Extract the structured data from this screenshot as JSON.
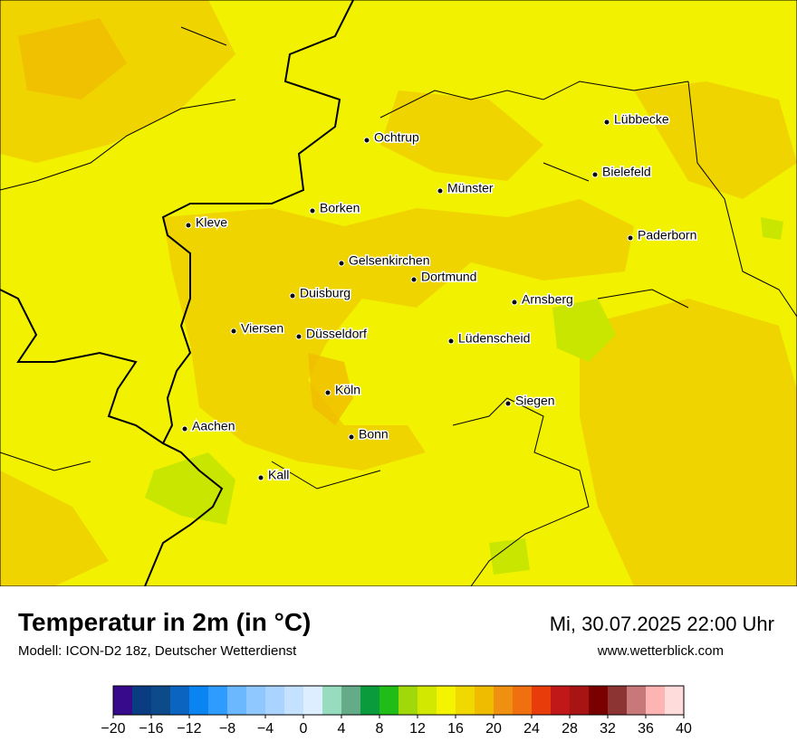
{
  "title": "Temperatur in 2m (in °C)",
  "subtitle": "Modell: ICON-D2 18z, Deutscher Wetterdienst",
  "datetime": "Mi, 30.07.2025 22:00 Uhr",
  "website": "www.wetterblick.com",
  "cities": [
    "Lübbecke",
    "Ochtrup",
    "Bielefeld",
    "Münster",
    "Borken",
    "Kleve",
    "Paderborn",
    "Gelsenkirchen",
    "Dortmund",
    "Duisburg",
    "Arnsberg",
    "Viersen",
    "Düsseldorf",
    "Lüdenscheid",
    "Köln",
    "Siegen",
    "Aachen",
    "Bonn",
    "Kall"
  ],
  "colorbar": {
    "range": [
      -20,
      40
    ],
    "ticks": [
      {
        "value": -20,
        "label": "−20"
      },
      {
        "value": -16,
        "label": "−16"
      },
      {
        "value": -12,
        "label": "−12"
      },
      {
        "value": -8,
        "label": "−8"
      },
      {
        "value": -4,
        "label": "−4"
      },
      0,
      4,
      8,
      12,
      16,
      20,
      24,
      28,
      32,
      36,
      40
    ],
    "colors": [
      "#360a8a",
      "#0a3c82",
      "#0c4a8a",
      "#0a64c0",
      "#0a84f0",
      "#2e9cff",
      "#6cb8ff",
      "#8ec8ff",
      "#aad4ff",
      "#c4e2ff",
      "#dceeff",
      "#98dcc0",
      "#64ac88",
      "#0a9c3c",
      "#20bc18",
      "#a0d80a",
      "#d2e800",
      "#f4f400",
      "#f0d800",
      "#f0bc00",
      "#f09010",
      "#f07010",
      "#e83c0a",
      "#c01818",
      "#a81414",
      "#7a0000",
      "#8c3434",
      "#c87878",
      "#ffb4b4",
      "#ffdcdc"
    ]
  }
}
